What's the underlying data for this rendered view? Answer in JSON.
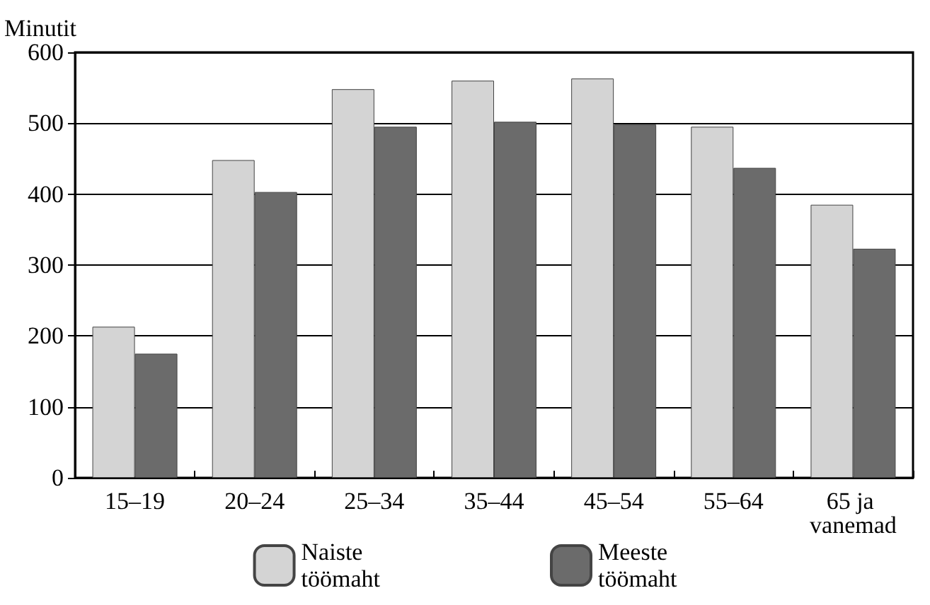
{
  "chart_data": {
    "type": "bar",
    "ylabel": "Minutit",
    "categories": [
      "15–19",
      "20–24",
      "25–34",
      "35–44",
      "45–54",
      "55–64",
      "65 ja vanemad"
    ],
    "series": [
      {
        "name": "Naiste töömaht",
        "color": "#d4d4d4",
        "values": [
          213,
          448,
          548,
          560,
          563,
          495,
          385
        ]
      },
      {
        "name": "Meeste töömaht",
        "color": "#6b6b6b",
        "values": [
          175,
          403,
          495,
          502,
          498,
          437,
          323
        ]
      }
    ],
    "ylim": [
      0,
      600
    ],
    "yticks": [
      0,
      100,
      200,
      300,
      400,
      500,
      600
    ],
    "grid": "y",
    "legend": "bottom"
  }
}
